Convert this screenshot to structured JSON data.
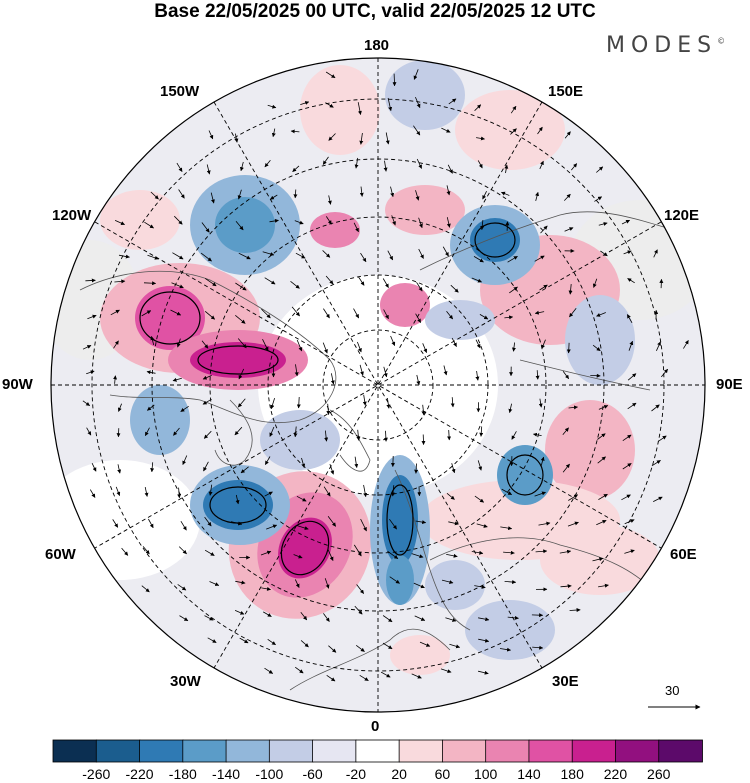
{
  "title": "Base 22/05/2025 00 UTC, valid 22/05/2025 12 UTC",
  "brand": {
    "text": "MODES",
    "mark": "©"
  },
  "longitudes": {
    "top": "180",
    "bottom": "0",
    "left": "90W",
    "right": "90E",
    "w150": "150W",
    "e150": "150E",
    "w120": "120W",
    "e120": "120E",
    "w60": "60W",
    "e60": "60E",
    "w30": "30W",
    "e30": "30E"
  },
  "vector_scale": {
    "value": "30"
  },
  "colorbar": {
    "labels": [
      "-260",
      "-220",
      "-180",
      "-140",
      "-100",
      "-60",
      "-20",
      "20",
      "60",
      "100",
      "140",
      "180",
      "220",
      "260"
    ],
    "colors": [
      "#0b2f52",
      "#1b5d8e",
      "#2f7ab4",
      "#5b9cc8",
      "#92b7da",
      "#c3cde6",
      "#e6e6f2",
      "#ffffff",
      "#f9dadd",
      "#f3b5c4",
      "#ea84b1",
      "#e052a4",
      "#c9208f",
      "#92107f",
      "#5c0a6a"
    ]
  }
}
